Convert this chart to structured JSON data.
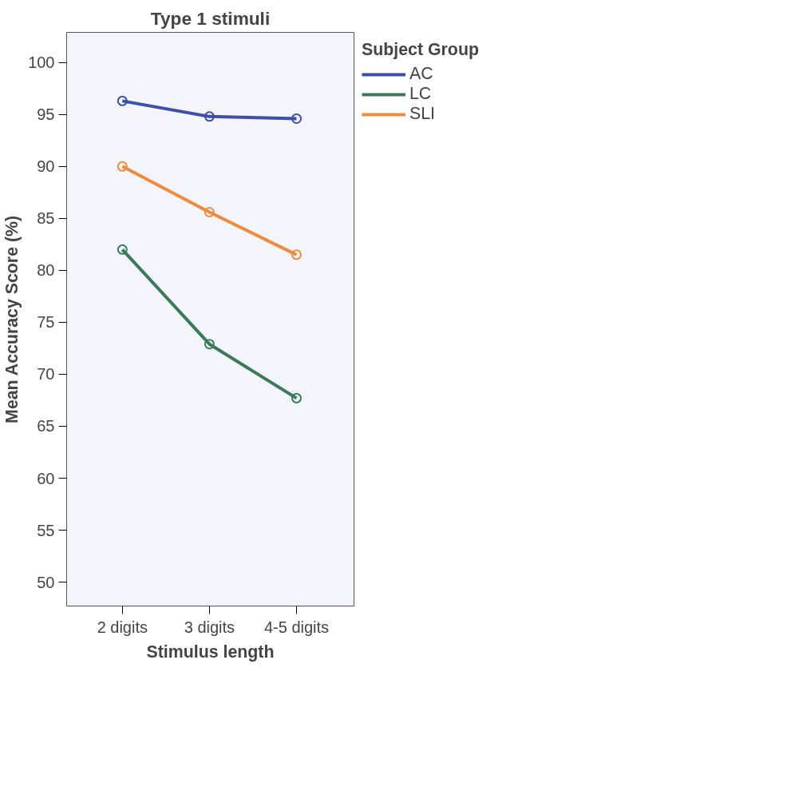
{
  "chart_data": {
    "type": "line",
    "title": "Type 1 stimuli",
    "xlabel": "Stimulus length",
    "ylabel": "Mean Accuracy Score (%)",
    "legend_title": "Subject Group",
    "categories": [
      "2 digits",
      "3 digits",
      "4-5 digits"
    ],
    "series": [
      {
        "name": "AC",
        "color": "#3d4fa8",
        "values": [
          96.3,
          94.8,
          94.6
        ]
      },
      {
        "name": "LC",
        "color": "#3a7a5a",
        "values": [
          82.0,
          72.9,
          67.7
        ]
      },
      {
        "name": "SLI",
        "color": "#f08a3c",
        "values": [
          90.0,
          85.6,
          81.5
        ]
      }
    ],
    "ylim": [
      47.7,
      102.9
    ],
    "yticks": [
      50,
      55,
      60,
      65,
      70,
      75,
      80,
      85,
      90,
      95,
      100
    ],
    "grid": false,
    "legend": "top right",
    "marker": "circle",
    "line_style": "solid"
  }
}
